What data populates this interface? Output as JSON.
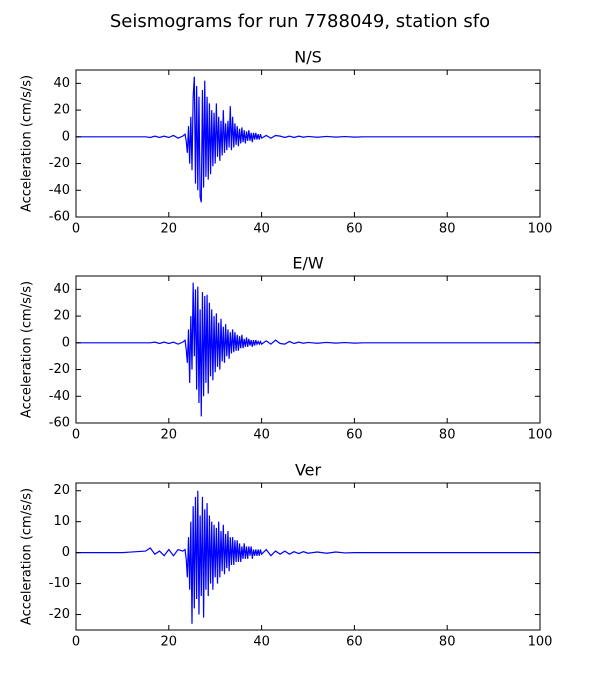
{
  "title": "Seismograms for run 7788049, station sfo",
  "chart_data": [
    {
      "type": "line",
      "title": "N/S",
      "ylabel": "Acceleration (cm/s/s)",
      "color": "#0000ff",
      "xlim": [
        0,
        100
      ],
      "xticks": [
        0,
        20,
        40,
        60,
        80,
        100
      ],
      "ylim": [
        -60,
        50
      ],
      "yticks": [
        -60,
        -40,
        -20,
        0,
        20,
        40
      ],
      "x": [
        0,
        5,
        10,
        15,
        16,
        17,
        18,
        19,
        20,
        21,
        22,
        23,
        23.5,
        23.75,
        24,
        24.25,
        24.5,
        24.75,
        25,
        25.25,
        25.5,
        25.75,
        26,
        26.25,
        26.5,
        26.75,
        27,
        27.25,
        27.5,
        27.75,
        28,
        28.25,
        28.5,
        28.75,
        29,
        29.25,
        29.5,
        29.75,
        30,
        30.25,
        30.5,
        30.75,
        31,
        31.25,
        31.5,
        31.75,
        32,
        32.25,
        32.5,
        32.75,
        33,
        33.25,
        33.5,
        33.75,
        34,
        34.25,
        34.5,
        34.75,
        35,
        35.25,
        35.5,
        35.75,
        36,
        36.25,
        36.5,
        36.75,
        37,
        37.25,
        37.5,
        37.75,
        38,
        38.25,
        38.5,
        38.75,
        39,
        39.25,
        39.5,
        39.75,
        40,
        41,
        42,
        43,
        44,
        45,
        46,
        47,
        48,
        49,
        50,
        52,
        54,
        56,
        58,
        60,
        62,
        64,
        66,
        70,
        80,
        90,
        100
      ],
      "values": [
        0,
        0,
        0,
        0,
        -0.5,
        0.5,
        -0.5,
        0.5,
        -0.5,
        1,
        -1,
        0.5,
        2,
        -3,
        -12,
        8,
        -20,
        15,
        -25,
        30,
        45,
        -35,
        38,
        -40,
        30,
        -45,
        -49,
        35,
        -38,
        42,
        -30,
        30,
        -32,
        25,
        -28,
        20,
        -22,
        18,
        -20,
        25,
        -15,
        15,
        -18,
        12,
        -14,
        20,
        -12,
        10,
        -10,
        12,
        -8,
        23,
        -10,
        15,
        -8,
        10,
        -6,
        8,
        -7,
        6,
        -5,
        7,
        -4,
        5,
        -5,
        4,
        -3,
        5,
        -3,
        3,
        -4,
        3,
        -2,
        3,
        -2,
        2,
        -2,
        2,
        -1,
        1,
        -1,
        1,
        0.5,
        -0.5,
        0.5,
        -0.5,
        0.5,
        -0.3,
        0.3,
        -0.3,
        0.3,
        -0.2,
        0.2,
        -0.2,
        0,
        0,
        0,
        0,
        0,
        0,
        0
      ]
    },
    {
      "type": "line",
      "title": "E/W",
      "ylabel": "Acceleration (cm/s/s)",
      "color": "#0000ff",
      "xlim": [
        0,
        100
      ],
      "xticks": [
        0,
        20,
        40,
        60,
        80,
        100
      ],
      "ylim": [
        -60,
        50
      ],
      "yticks": [
        -60,
        -40,
        -20,
        0,
        20,
        40
      ],
      "x": [
        0,
        5,
        10,
        15,
        16,
        17,
        18,
        19,
        20,
        21,
        22,
        23,
        23.5,
        23.75,
        24,
        24.25,
        24.5,
        24.75,
        25,
        25.25,
        25.5,
        25.75,
        26,
        26.25,
        26.5,
        26.75,
        27,
        27.25,
        27.5,
        27.75,
        28,
        28.25,
        28.5,
        28.75,
        29,
        29.25,
        29.5,
        29.75,
        30,
        30.25,
        30.5,
        30.75,
        31,
        31.25,
        31.5,
        31.75,
        32,
        32.25,
        32.5,
        32.75,
        33,
        33.25,
        33.5,
        33.75,
        34,
        34.25,
        34.5,
        34.75,
        35,
        35.25,
        35.5,
        35.75,
        36,
        36.25,
        36.5,
        36.75,
        37,
        37.25,
        37.5,
        37.75,
        38,
        38.25,
        38.5,
        38.75,
        39,
        39.25,
        39.5,
        39.75,
        40,
        41,
        42,
        43,
        44,
        45,
        46,
        47,
        48,
        49,
        50,
        52,
        54,
        56,
        58,
        60,
        62,
        64,
        66,
        70,
        80,
        90,
        100
      ],
      "values": [
        0,
        0,
        0,
        0,
        0,
        0.5,
        -0.5,
        0.5,
        -0.5,
        0.5,
        -1,
        0.5,
        2,
        -5,
        -15,
        10,
        -30,
        20,
        -20,
        45,
        -10,
        40,
        -35,
        42,
        -45,
        25,
        -55,
        38,
        -40,
        35,
        -30,
        36,
        -38,
        30,
        -25,
        25,
        -28,
        20,
        -22,
        22,
        -18,
        15,
        -20,
        18,
        -14,
        12,
        -15,
        14,
        -10,
        10,
        -12,
        8,
        -8,
        10,
        -7,
        8,
        -6,
        6,
        -6,
        5,
        -4,
        6,
        -4,
        3,
        -3,
        4,
        -3,
        3,
        -2,
        2,
        -3,
        2,
        -2,
        2,
        -1,
        1,
        -1,
        1,
        -1,
        1.5,
        -1,
        2,
        -0.5,
        -1,
        1,
        -0.5,
        0.5,
        -0.3,
        0.3,
        -0.3,
        0.3,
        -0.2,
        0.2,
        -0.2,
        0,
        0,
        0,
        0,
        0,
        0,
        0
      ]
    },
    {
      "type": "line",
      "title": "Ver",
      "ylabel": "Acceleration (cm/s/s)",
      "color": "#0000ff",
      "xlim": [
        0,
        100
      ],
      "xticks": [
        0,
        20,
        40,
        60,
        80,
        100
      ],
      "ylim": [
        -25,
        22.5
      ],
      "yticks": [
        -20,
        -10,
        0,
        10,
        20
      ],
      "x": [
        0,
        5,
        10,
        15,
        16,
        17,
        18,
        19,
        20,
        21,
        22,
        23,
        23.5,
        23.75,
        24,
        24.25,
        24.5,
        24.75,
        25,
        25.25,
        25.5,
        25.75,
        26,
        26.25,
        26.5,
        26.75,
        27,
        27.25,
        27.5,
        27.75,
        28,
        28.25,
        28.5,
        28.75,
        29,
        29.25,
        29.5,
        29.75,
        30,
        30.25,
        30.5,
        30.75,
        31,
        31.25,
        31.5,
        31.75,
        32,
        32.25,
        32.5,
        32.75,
        33,
        33.25,
        33.5,
        33.75,
        34,
        34.25,
        34.5,
        34.75,
        35,
        35.25,
        35.5,
        35.75,
        36,
        36.25,
        36.5,
        36.75,
        37,
        37.25,
        37.5,
        37.75,
        38,
        38.25,
        38.5,
        38.75,
        39,
        39.25,
        39.5,
        39.75,
        40,
        41,
        42,
        43,
        44,
        45,
        46,
        47,
        48,
        49,
        50,
        52,
        54,
        56,
        58,
        60,
        62,
        64,
        66,
        70,
        80,
        90,
        100
      ],
      "values": [
        0,
        0,
        0,
        0.5,
        1.5,
        -0.5,
        0.5,
        -1,
        1,
        -1,
        1,
        0.5,
        1,
        -2,
        -8,
        5,
        -12,
        10,
        -23,
        15,
        -18,
        18,
        -15,
        20,
        -20,
        12,
        -14,
        18,
        -21,
        14,
        -12,
        16,
        -14,
        12,
        -10,
        10,
        -12,
        9,
        -8,
        8,
        -10,
        10,
        -8,
        7,
        -6,
        9,
        -7,
        6,
        -5,
        7,
        -6,
        5,
        -4,
        5,
        -4,
        4,
        -3,
        4,
        -3,
        3,
        -3,
        2,
        -2,
        3,
        -2,
        2,
        -2,
        2,
        -1,
        2,
        -2,
        1,
        -1,
        1,
        -1,
        1,
        -1,
        1,
        -0.5,
        1,
        -1,
        0.5,
        -0.5,
        0.5,
        -0.5,
        0.3,
        -0.3,
        0.3,
        -0.2,
        0.2,
        -0.2,
        0.2,
        -0.1,
        0,
        0,
        0,
        0,
        0,
        0,
        0,
        0
      ]
    }
  ]
}
